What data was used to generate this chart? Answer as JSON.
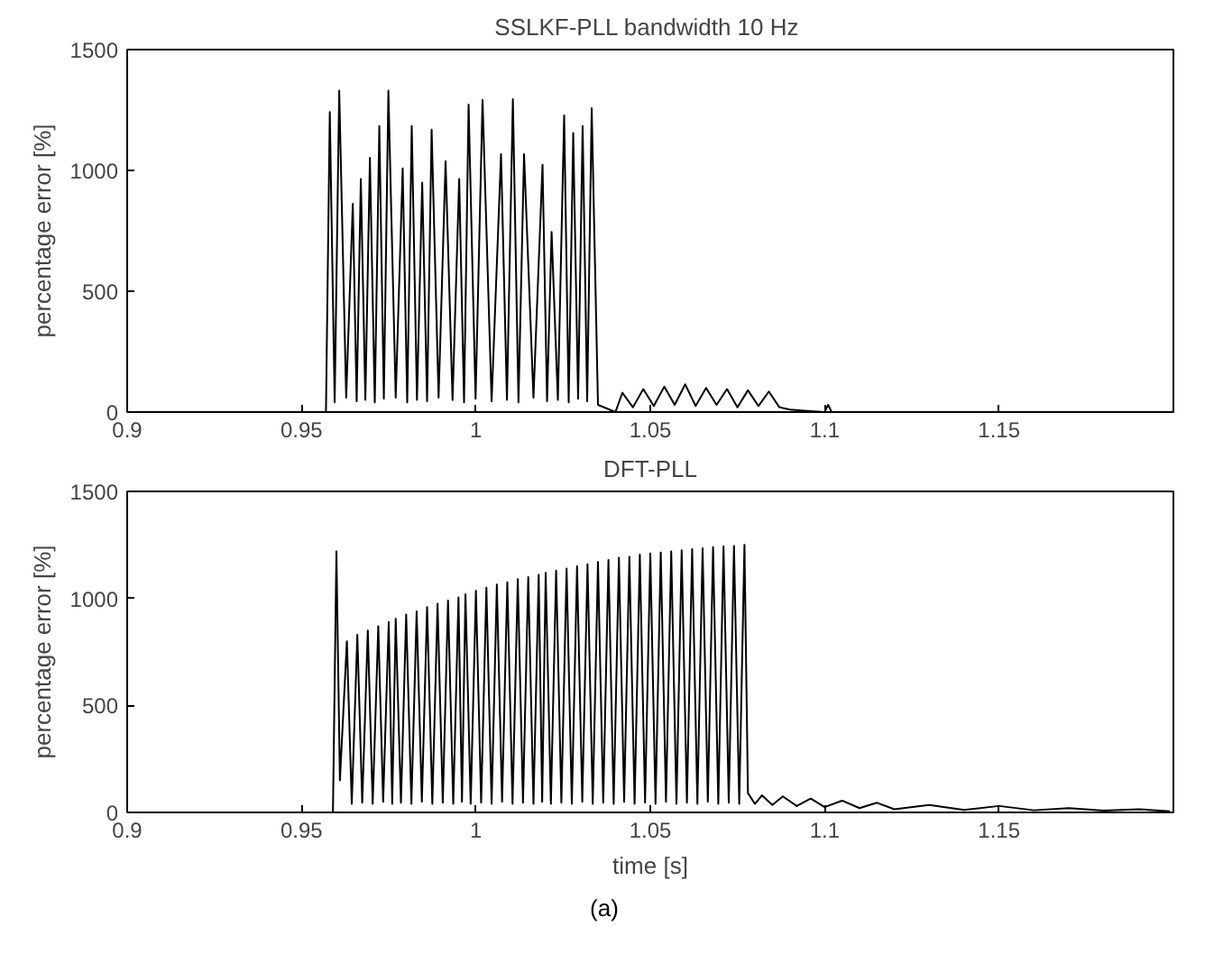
{
  "chart_data": [
    {
      "type": "line",
      "title": "SSLKF-PLL bandwidth  10 Hz",
      "ylabel": "percentage error [%]",
      "xlim": [
        0.9,
        1.2
      ],
      "ylim": [
        0,
        1500
      ],
      "xticks": [
        0.9,
        0.95,
        1,
        1.05,
        1.1,
        1.15
      ],
      "yticks": [
        0,
        500,
        1000,
        1500
      ],
      "grid": false,
      "series": [
        {
          "color": "#000000",
          "x": [
            0.9,
            0.957,
            0.9581,
            0.9595,
            0.9608,
            0.9628,
            0.9647,
            0.9658,
            0.967,
            0.9683,
            0.9696,
            0.971,
            0.9723,
            0.9736,
            0.9749,
            0.977,
            0.979,
            0.9803,
            0.9816,
            0.9831,
            0.9846,
            0.986,
            0.9873,
            0.9893,
            0.9913,
            0.9933,
            0.9952,
            0.9966,
            0.9979,
            0.9999,
            1.0019,
            1.0045,
            1.0072,
            1.0089,
            1.0106,
            1.0122,
            1.0138,
            1.0165,
            1.0191,
            1.0204,
            1.0217,
            1.0235,
            1.0253,
            1.0266,
            1.0279,
            1.0293,
            1.0306,
            1.0319,
            1.0332,
            1.035,
            1.04,
            1.042,
            1.045,
            1.048,
            1.051,
            1.054,
            1.057,
            1.06,
            1.063,
            1.066,
            1.069,
            1.072,
            1.075,
            1.078,
            1.081,
            1.084,
            1.087,
            1.09,
            1.095,
            1.1,
            1.101,
            1.102,
            1.2
          ],
          "values": [
            0,
            0,
            1242,
            40,
            1330,
            60,
            862,
            45,
            965,
            50,
            1052,
            40,
            1184,
            55,
            1330,
            60,
            1008,
            40,
            1184,
            50,
            950,
            45,
            1169,
            60,
            1038,
            50,
            965,
            40,
            1272,
            55,
            1292,
            45,
            1067,
            50,
            1295,
            40,
            1067,
            60,
            1023,
            45,
            745,
            50,
            1228,
            40,
            1155,
            55,
            1184,
            45,
            1257,
            30,
            0,
            80,
            20,
            95,
            25,
            105,
            30,
            115,
            25,
            100,
            30,
            95,
            20,
            90,
            25,
            85,
            20,
            10,
            5,
            0,
            30,
            0,
            0
          ]
        }
      ]
    },
    {
      "type": "line",
      "title": "DFT-PLL",
      "xlabel": "time [s]",
      "ylabel": "percentage error [%]",
      "xlim": [
        0.9,
        1.2
      ],
      "ylim": [
        0,
        1500
      ],
      "xticks": [
        0.9,
        0.95,
        1,
        1.05,
        1.1,
        1.15
      ],
      "yticks": [
        0,
        500,
        1000,
        1500
      ],
      "grid": false,
      "annotations": [
        "(a)"
      ],
      "series": [
        {
          "color": "#000000",
          "x": [
            0.9,
            0.959,
            0.96,
            0.961,
            0.963,
            0.9644,
            0.966,
            0.9674,
            0.969,
            0.9704,
            0.972,
            0.9734,
            0.975,
            0.976,
            0.977,
            0.9785,
            0.98,
            0.9815,
            0.983,
            0.9845,
            0.986,
            0.9875,
            0.989,
            0.9905,
            0.992,
            0.9935,
            0.995,
            0.996,
            0.997,
            0.9985,
            1.0,
            1.0015,
            1.003,
            1.0045,
            1.006,
            1.0075,
            1.009,
            1.0105,
            1.012,
            1.0135,
            1.015,
            1.0165,
            1.018,
            1.019,
            1.02,
            1.0215,
            1.023,
            1.0245,
            1.026,
            1.0275,
            1.029,
            1.0305,
            1.032,
            1.0335,
            1.035,
            1.0365,
            1.038,
            1.0395,
            1.041,
            1.0425,
            1.044,
            1.0455,
            1.047,
            1.0485,
            1.05,
            1.0515,
            1.053,
            1.0545,
            1.056,
            1.0575,
            1.059,
            1.0605,
            1.062,
            1.0635,
            1.065,
            1.0665,
            1.068,
            1.0695,
            1.071,
            1.0725,
            1.074,
            1.0755,
            1.077,
            1.078,
            1.08,
            1.082,
            1.085,
            1.088,
            1.092,
            1.096,
            1.1,
            1.105,
            1.11,
            1.115,
            1.12,
            1.13,
            1.14,
            1.15,
            1.16,
            1.17,
            1.18,
            1.19,
            1.199
          ],
          "values": [
            0,
            0,
            1220,
            150,
            800,
            40,
            830,
            45,
            850,
            40,
            870,
            50,
            890,
            40,
            905,
            45,
            925,
            40,
            940,
            50,
            960,
            40,
            975,
            45,
            990,
            40,
            1005,
            50,
            1020,
            40,
            1035,
            45,
            1050,
            40,
            1065,
            50,
            1075,
            40,
            1090,
            45,
            1100,
            40,
            1110,
            50,
            1120,
            40,
            1130,
            45,
            1140,
            40,
            1150,
            50,
            1160,
            40,
            1170,
            45,
            1180,
            40,
            1190,
            50,
            1195,
            40,
            1205,
            45,
            1210,
            40,
            1215,
            50,
            1220,
            40,
            1225,
            45,
            1230,
            40,
            1235,
            50,
            1240,
            40,
            1243,
            45,
            1245,
            40,
            1250,
            90,
            40,
            80,
            35,
            75,
            30,
            65,
            25,
            55,
            20,
            45,
            15,
            35,
            12,
            30,
            10,
            20,
            8,
            15,
            5
          ]
        }
      ]
    }
  ]
}
